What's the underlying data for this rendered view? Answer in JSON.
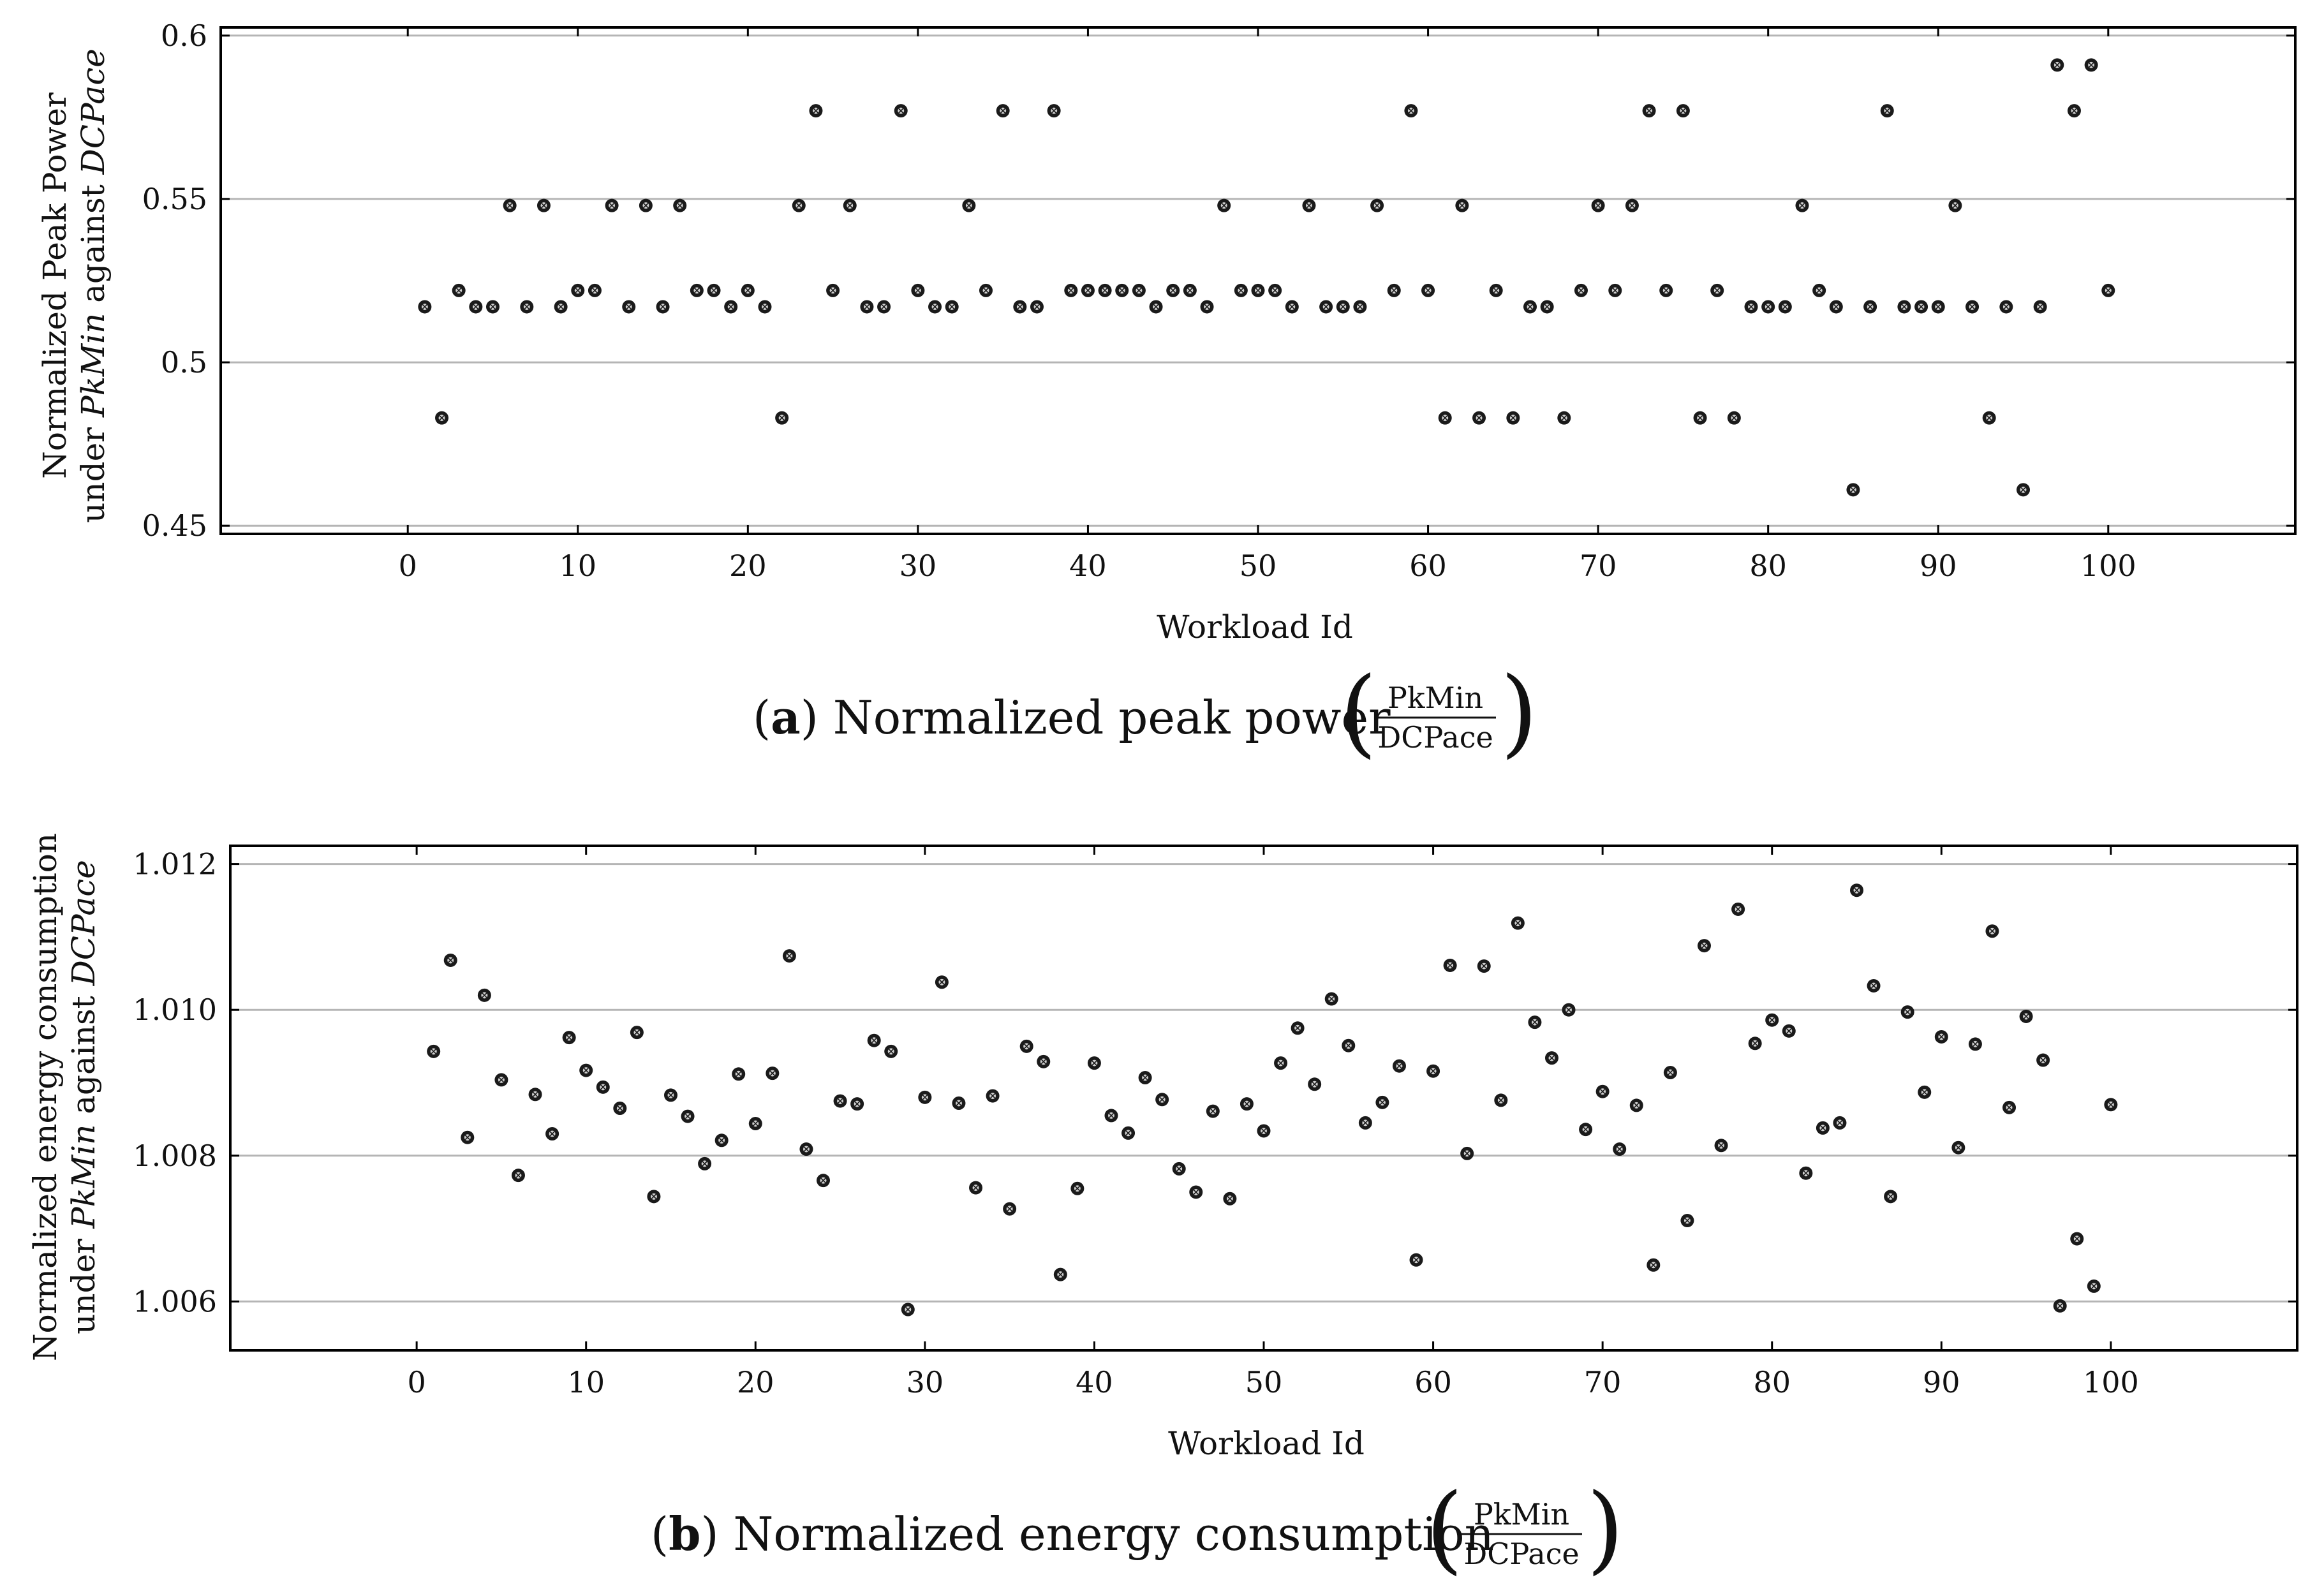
{
  "chart_data": [
    {
      "type": "scatter",
      "panel_letter": "a",
      "caption_text": "Normalized peak power",
      "caption_fraction": {
        "numerator": "PkMin",
        "denominator": "DCPace"
      },
      "ylabel_line1": "Normalized Peak Power",
      "ylabel_line2_prefix": "under ",
      "ylabel_line2_it1": "PkMin",
      "ylabel_line2_mid": " against ",
      "ylabel_line2_it2": "DCPace",
      "xlabel": "Workload Id",
      "xlim": [
        -11,
        111
      ],
      "ylim": [
        0.4475,
        0.6025
      ],
      "xticks": [
        0,
        10,
        20,
        30,
        40,
        50,
        60,
        70,
        80,
        90,
        100
      ],
      "yticks": [
        0.45,
        0.5,
        0.55,
        0.6
      ],
      "ytick_labels": [
        "0.45",
        "0.5",
        "0.55",
        "0.6"
      ],
      "grid": true,
      "x": [
        1,
        2,
        3,
        4,
        5,
        6,
        7,
        8,
        9,
        10,
        11,
        12,
        13,
        14,
        15,
        16,
        17,
        18,
        19,
        20,
        21,
        22,
        23,
        24,
        25,
        26,
        27,
        28,
        29,
        30,
        31,
        32,
        33,
        34,
        35,
        36,
        37,
        38,
        39,
        40,
        41,
        42,
        43,
        44,
        45,
        46,
        47,
        48,
        49,
        50,
        51,
        52,
        53,
        54,
        55,
        56,
        57,
        58,
        59,
        60,
        61,
        62,
        63,
        64,
        65,
        66,
        67,
        68,
        69,
        70,
        71,
        72,
        73,
        74,
        75,
        76,
        77,
        78,
        79,
        80,
        81,
        82,
        83,
        84,
        85,
        86,
        87,
        88,
        89,
        90,
        91,
        92,
        93,
        94,
        95,
        96,
        97,
        98,
        99,
        100
      ],
      "y": [
        0.517,
        0.483,
        0.522,
        0.517,
        0.517,
        0.548,
        0.517,
        0.548,
        0.517,
        0.522,
        0.522,
        0.548,
        0.517,
        0.548,
        0.517,
        0.548,
        0.522,
        0.522,
        0.517,
        0.522,
        0.517,
        0.483,
        0.548,
        0.577,
        0.522,
        0.548,
        0.517,
        0.517,
        0.577,
        0.522,
        0.517,
        0.517,
        0.548,
        0.522,
        0.577,
        0.517,
        0.517,
        0.577,
        0.522,
        0.522,
        0.522,
        0.522,
        0.522,
        0.517,
        0.522,
        0.522,
        0.517,
        0.548,
        0.522,
        0.522,
        0.522,
        0.517,
        0.548,
        0.517,
        0.517,
        0.517,
        0.548,
        0.522,
        0.577,
        0.522,
        0.483,
        0.548,
        0.483,
        0.522,
        0.483,
        0.517,
        0.517,
        0.483,
        0.522,
        0.548,
        0.522,
        0.548,
        0.577,
        0.522,
        0.577,
        0.483,
        0.522,
        0.483,
        0.517,
        0.517,
        0.517,
        0.548,
        0.522,
        0.517,
        0.461,
        0.517,
        0.577,
        0.517,
        0.517,
        0.517,
        0.548,
        0.517,
        0.483,
        0.517,
        0.461,
        0.517,
        0.591,
        0.577,
        0.591,
        0.522
      ]
    },
    {
      "type": "scatter",
      "panel_letter": "b",
      "caption_text": "Normalized energy consumption",
      "caption_fraction": {
        "numerator": "PkMin",
        "denominator": "DCPace"
      },
      "ylabel_line1": "Normalized energy consumption",
      "ylabel_line2_prefix": "under ",
      "ylabel_line2_it1": "PkMin",
      "ylabel_line2_mid": " against ",
      "ylabel_line2_it2": "DCPace",
      "xlabel": "Workload Id",
      "xlim": [
        -11,
        111
      ],
      "ylim": [
        1.00533,
        1.01225
      ],
      "xticks": [
        0,
        10,
        20,
        30,
        40,
        50,
        60,
        70,
        80,
        90,
        100
      ],
      "yticks": [
        1.006,
        1.008,
        1.01,
        1.012
      ],
      "ytick_labels": [
        "1.006",
        "1.008",
        "1.010",
        "1.012"
      ],
      "grid": true,
      "x": [
        1,
        2,
        3,
        4,
        5,
        6,
        7,
        8,
        9,
        10,
        11,
        12,
        13,
        14,
        15,
        16,
        17,
        18,
        19,
        20,
        21,
        22,
        23,
        24,
        25,
        26,
        27,
        28,
        29,
        30,
        31,
        32,
        33,
        34,
        35,
        36,
        37,
        38,
        39,
        40,
        41,
        42,
        43,
        44,
        45,
        46,
        47,
        48,
        49,
        50,
        51,
        52,
        53,
        54,
        55,
        56,
        57,
        58,
        59,
        60,
        61,
        62,
        63,
        64,
        65,
        66,
        67,
        68,
        69,
        70,
        71,
        72,
        73,
        74,
        75,
        76,
        77,
        78,
        79,
        80,
        81,
        82,
        83,
        84,
        85,
        86,
        87,
        88,
        89,
        90,
        91,
        92,
        93,
        94,
        95,
        96,
        97,
        98,
        99,
        100
      ],
      "y": [
        1.00943,
        1.01068,
        1.00825,
        1.0102,
        1.00904,
        1.00773,
        1.00884,
        1.0083,
        1.00962,
        1.00917,
        1.00894,
        1.00865,
        1.00969,
        1.00744,
        1.00883,
        1.00854,
        1.00789,
        1.00821,
        1.00912,
        1.00844,
        1.00913,
        1.01074,
        1.00809,
        1.00766,
        1.00875,
        1.00871,
        1.00958,
        1.00943,
        1.00589,
        1.0088,
        1.01038,
        1.00872,
        1.00756,
        1.00882,
        1.00727,
        1.0095,
        1.00929,
        1.00637,
        1.00755,
        1.00927,
        1.00855,
        1.00831,
        1.00907,
        1.00877,
        1.00782,
        1.0075,
        1.00861,
        1.00741,
        1.00871,
        1.00834,
        1.00927,
        1.00975,
        1.00898,
        1.01015,
        1.00951,
        1.00845,
        1.00873,
        1.00923,
        1.00657,
        1.00916,
        1.01061,
        1.00803,
        1.0106,
        1.00876,
        1.01119,
        1.00983,
        1.00934,
        1.01,
        1.00836,
        1.00888,
        1.00809,
        1.00869,
        1.0065,
        1.00914,
        1.00711,
        1.01088,
        1.00814,
        1.01138,
        1.00954,
        1.00986,
        1.00971,
        1.00776,
        1.00838,
        1.00845,
        1.01164,
        1.01033,
        1.00744,
        1.00997,
        1.00887,
        1.00963,
        1.00811,
        1.00953,
        1.01108,
        1.00866,
        1.00991,
        1.00931,
        1.00594,
        1.00686,
        1.00621,
        1.0087
      ]
    }
  ]
}
